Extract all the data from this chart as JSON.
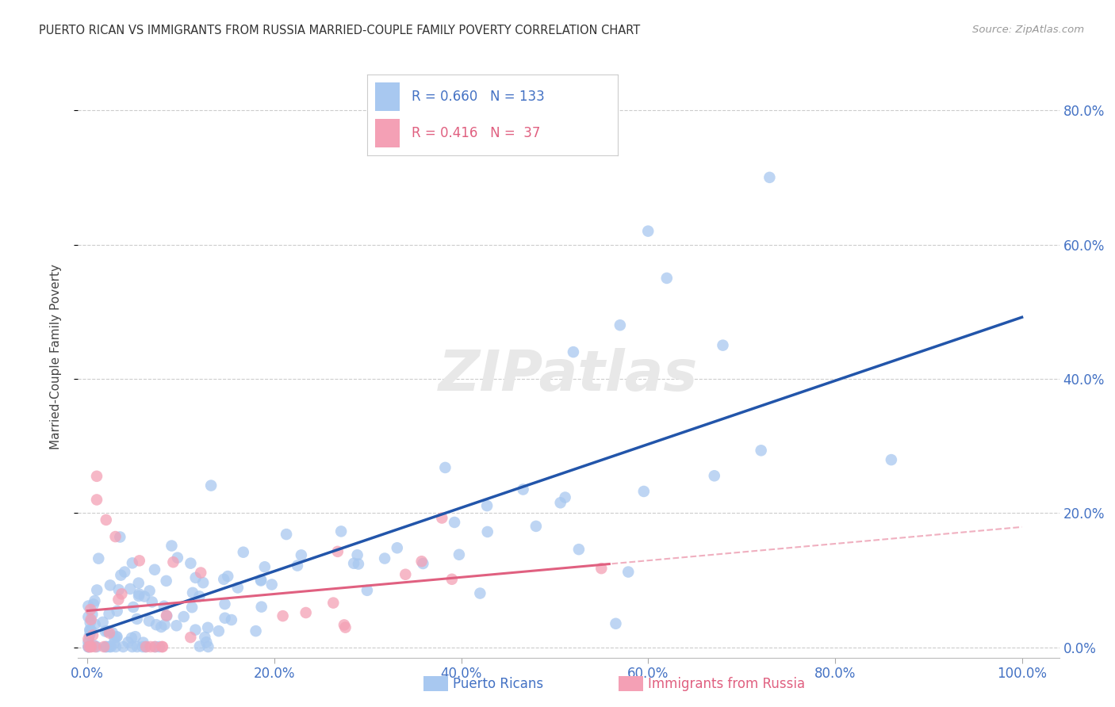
{
  "title": "PUERTO RICAN VS IMMIGRANTS FROM RUSSIA MARRIED-COUPLE FAMILY POVERTY CORRELATION CHART",
  "source": "Source: ZipAtlas.com",
  "xlabel_blue": "Puerto Ricans",
  "xlabel_pink": "Immigrants from Russia",
  "ylabel": "Married-Couple Family Poverty",
  "blue_R": 0.66,
  "blue_N": 133,
  "pink_R": 0.416,
  "pink_N": 37,
  "blue_color": "#A8C8F0",
  "pink_color": "#F4A0B5",
  "blue_line_color": "#2255AA",
  "pink_line_color": "#E06080",
  "pink_dash_color": "#F0B0C0",
  "watermark": "ZIPatlas",
  "ytick_vals": [
    0.0,
    0.2,
    0.4,
    0.6,
    0.8
  ],
  "xtick_vals": [
    0.0,
    0.2,
    0.4,
    0.6,
    0.8,
    1.0
  ]
}
